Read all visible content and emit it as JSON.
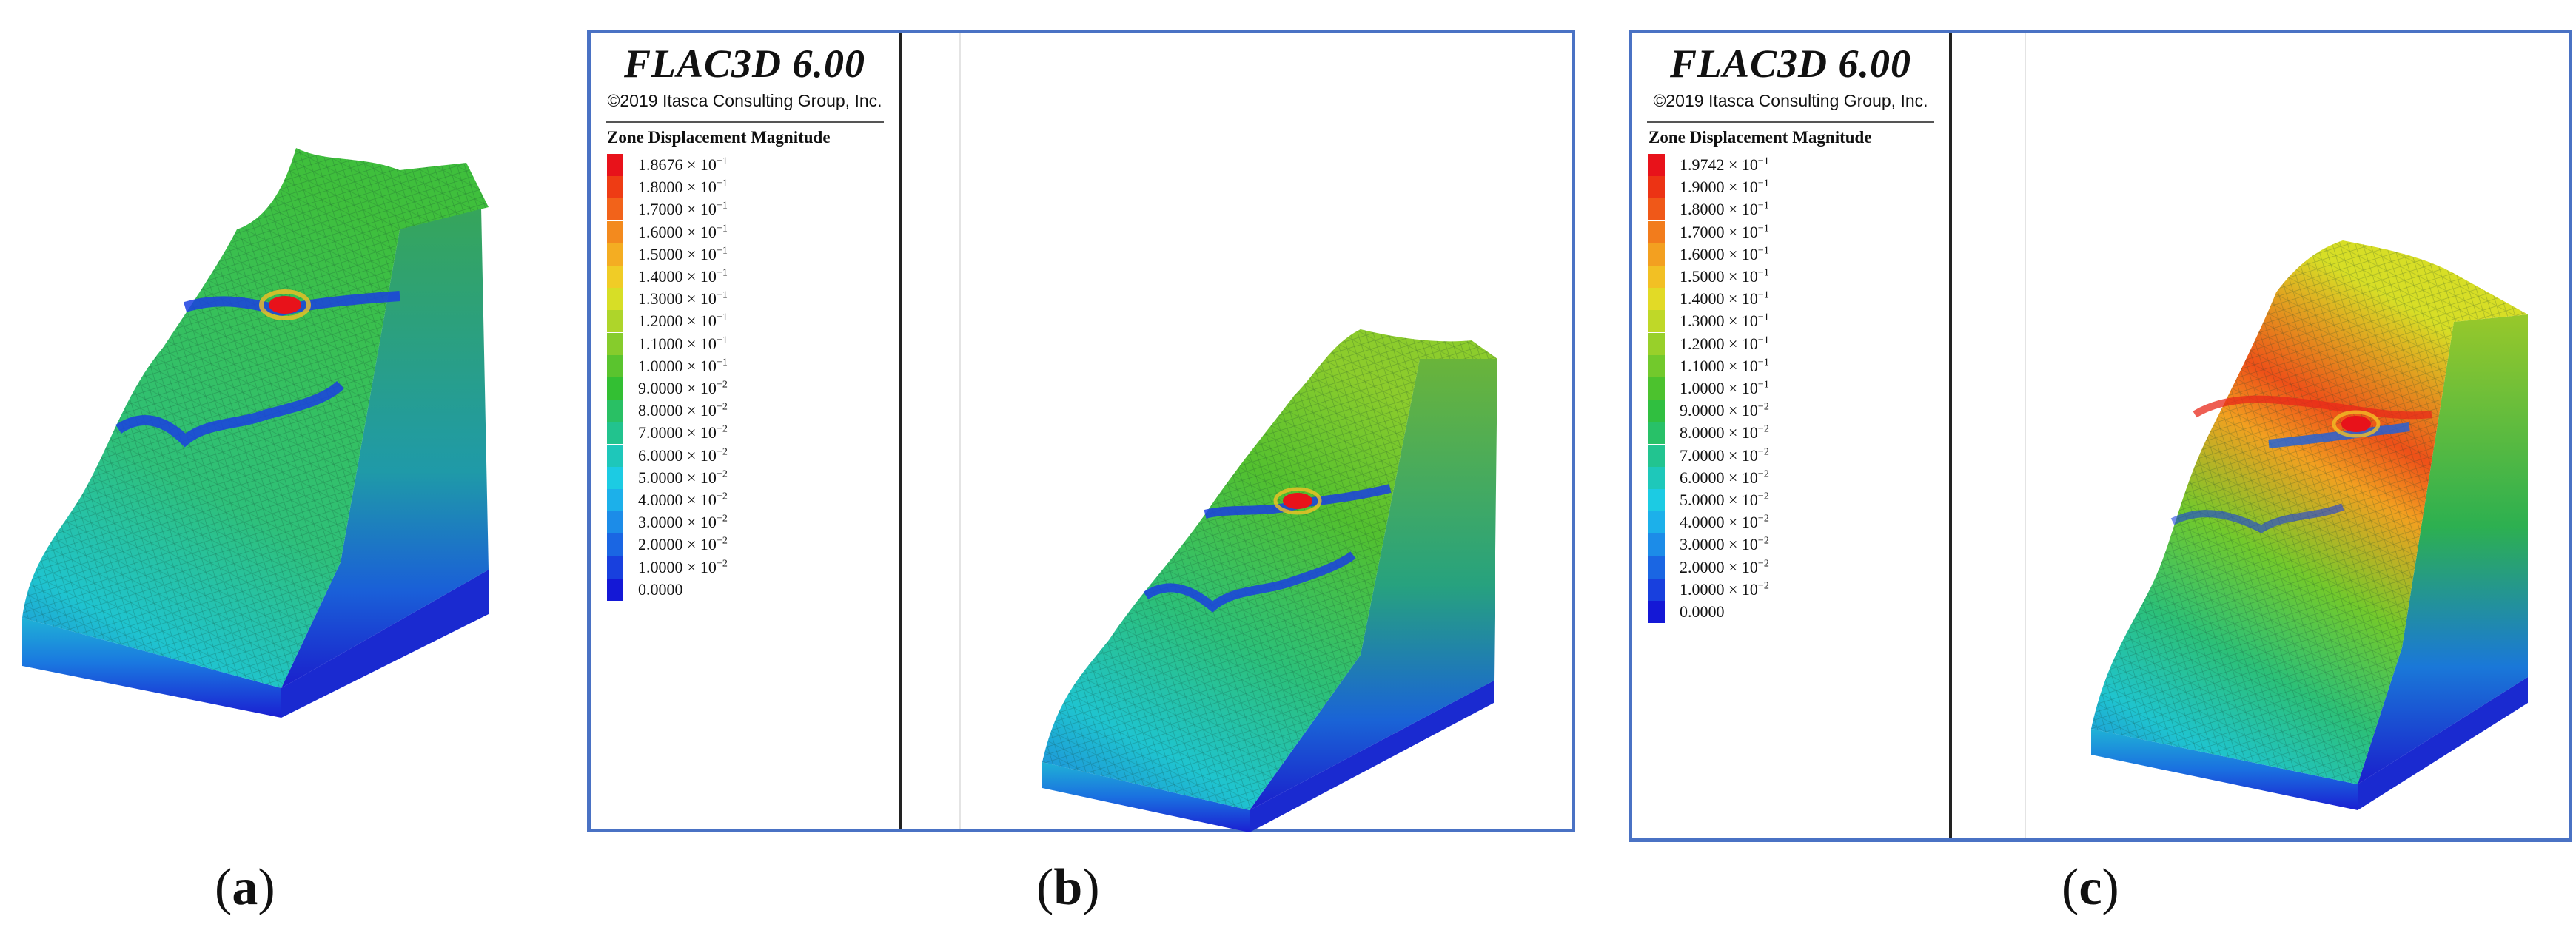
{
  "captions": {
    "a": {
      "open": "(",
      "letter": "a",
      "close": ")"
    },
    "b": {
      "open": "(",
      "letter": "b",
      "close": ")"
    },
    "c": {
      "open": "(",
      "letter": "c",
      "close": ")"
    }
  },
  "panel_b": {
    "software_title": "FLAC3D 6.00",
    "copyright": "©2019 Itasca Consulting Group, Inc.",
    "legend_heading": "Zone Displacement Magnitude",
    "legend": [
      {
        "label": "1.8676 × 10",
        "exp": "−1",
        "color": "#e8121a"
      },
      {
        "label": "1.8000 × 10",
        "exp": "−1",
        "color": "#ee3c14"
      },
      {
        "label": "1.7000 × 10",
        "exp": "−1",
        "color": "#f2631a"
      },
      {
        "label": "1.6000 × 10",
        "exp": "−1",
        "color": "#f38a1e"
      },
      {
        "label": "1.5000 × 10",
        "exp": "−1",
        "color": "#f4ad22"
      },
      {
        "label": "1.4000 × 10",
        "exp": "−1",
        "color": "#f0cc26"
      },
      {
        "label": "1.3000 × 10",
        "exp": "−1",
        "color": "#d7de26"
      },
      {
        "label": "1.2000 × 10",
        "exp": "−1",
        "color": "#aed52a"
      },
      {
        "label": "1.1000 × 10",
        "exp": "−1",
        "color": "#86cc2c"
      },
      {
        "label": "1.0000 × 10",
        "exp": "−1",
        "color": "#5ac42e"
      },
      {
        "label": "9.0000 × 10",
        "exp": "−2",
        "color": "#33bf33"
      },
      {
        "label": "8.0000 × 10",
        "exp": "−2",
        "color": "#29c064"
      },
      {
        "label": "7.0000 × 10",
        "exp": "−2",
        "color": "#22c38e"
      },
      {
        "label": "6.0000 × 10",
        "exp": "−2",
        "color": "#1ec7ba"
      },
      {
        "label": "5.0000 × 10",
        "exp": "−2",
        "color": "#1ccbe3"
      },
      {
        "label": "4.0000 × 10",
        "exp": "−2",
        "color": "#1cb0ea"
      },
      {
        "label": "3.0000 × 10",
        "exp": "−2",
        "color": "#1c8ce8"
      },
      {
        "label": "2.0000 × 10",
        "exp": "−2",
        "color": "#1a66e3"
      },
      {
        "label": "1.0000 × 10",
        "exp": "−2",
        "color": "#1840de"
      },
      {
        "label": "0.0000",
        "exp": "",
        "color": "#1418d6"
      }
    ]
  },
  "panel_c": {
    "software_title": "FLAC3D 6.00",
    "copyright": "©2019 Itasca Consulting Group, Inc.",
    "legend_heading": "Zone Displacement Magnitude",
    "legend": [
      {
        "label": "1.9742 × 10",
        "exp": "−1",
        "color": "#e8121a"
      },
      {
        "label": "1.9000 × 10",
        "exp": "−1",
        "color": "#ec3314"
      },
      {
        "label": "1.8000 × 10",
        "exp": "−1",
        "color": "#f05818"
      },
      {
        "label": "1.7000 × 10",
        "exp": "−1",
        "color": "#f27c1c"
      },
      {
        "label": "1.6000 × 10",
        "exp": "−1",
        "color": "#f3a020"
      },
      {
        "label": "1.5000 × 10",
        "exp": "−1",
        "color": "#f2c024"
      },
      {
        "label": "1.4000 × 10",
        "exp": "−1",
        "color": "#e2da26"
      },
      {
        "label": "1.3000 × 10",
        "exp": "−1",
        "color": "#bfd828"
      },
      {
        "label": "1.2000 × 10",
        "exp": "−1",
        "color": "#98d02a"
      },
      {
        "label": "1.1000 × 10",
        "exp": "−1",
        "color": "#72c92c"
      },
      {
        "label": "1.0000 × 10",
        "exp": "−1",
        "color": "#4cc22e"
      },
      {
        "label": "9.0000 × 10",
        "exp": "−2",
        "color": "#30bf40"
      },
      {
        "label": "8.0000 × 10",
        "exp": "−2",
        "color": "#28c168"
      },
      {
        "label": "7.0000 × 10",
        "exp": "−2",
        "color": "#22c490"
      },
      {
        "label": "6.0000 × 10",
        "exp": "−2",
        "color": "#1ec8ba"
      },
      {
        "label": "5.0000 × 10",
        "exp": "−2",
        "color": "#1ccbe3"
      },
      {
        "label": "4.0000 × 10",
        "exp": "−2",
        "color": "#1cb0ea"
      },
      {
        "label": "3.0000 × 10",
        "exp": "−2",
        "color": "#1c8ce8"
      },
      {
        "label": "2.0000 × 10",
        "exp": "−2",
        "color": "#1a66e3"
      },
      {
        "label": "1.0000 × 10",
        "exp": "−2",
        "color": "#1840de"
      },
      {
        "label": "0.0000",
        "exp": "",
        "color": "#1418d6"
      }
    ]
  },
  "colors": {
    "frame": "#4a72c4",
    "divider": "#222222"
  }
}
